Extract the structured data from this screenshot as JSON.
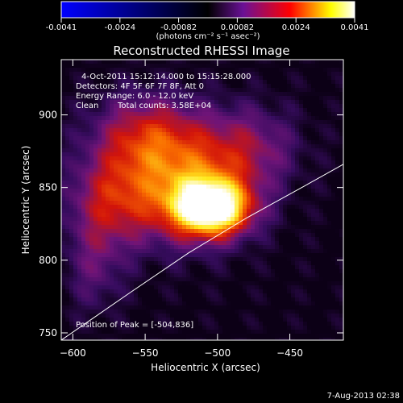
{
  "colorbar": {
    "ticks": [
      "-0.0041",
      "-0.0024",
      "-0.00082",
      "0.00082",
      "0.0024",
      "0.0041"
    ],
    "unit_label": "(photons cm⁻² s⁻¹ asec⁻²)",
    "range": [
      -0.0041,
      0.0041
    ],
    "colors": [
      "#0000ff",
      "#000000",
      "#6a1196",
      "#ff0000",
      "#ffff00",
      "#ffffff"
    ]
  },
  "chart_data": {
    "type": "heatmap",
    "title": "Reconstructed RHESSI Image",
    "xlabel": "Heliocentric X (arcsec)",
    "ylabel": "Heliocentric Y (arcsec)",
    "xlim": [
      -608,
      -413
    ],
    "ylim": [
      745,
      938
    ],
    "x_ticks": [
      -600,
      -550,
      -500,
      -450
    ],
    "y_ticks": [
      750,
      800,
      850,
      900
    ],
    "annotations": {
      "time_range": "4-Oct-2011 15:12:14.000 to 15:15:28.000",
      "detectors": "Detectors: 4F 5F 6F 7F 8F, Att 0",
      "energy": "Energy Range: 6.0 - 12.0 keV",
      "clean": "Clean",
      "counts": "Total counts: 3.58E+04",
      "peak": "Position of Peak = [-504,836]"
    },
    "peak": {
      "x": -504,
      "y": 836
    },
    "limb_curve": {
      "x": [
        -608,
        -560,
        -520,
        -480,
        -440,
        -413
      ],
      "y": [
        745,
        778,
        805,
        829,
        851,
        866
      ]
    },
    "sources": [
      {
        "x": -504,
        "y": 836,
        "sx": 18,
        "sy": 13,
        "amp": 1.0
      },
      {
        "x": -525,
        "y": 850,
        "sx": 30,
        "sy": 25,
        "amp": 0.5
      },
      {
        "x": -548,
        "y": 885,
        "sx": 26,
        "sy": 20,
        "amp": 0.4
      },
      {
        "x": -575,
        "y": 840,
        "sx": 20,
        "sy": 22,
        "amp": 0.33
      },
      {
        "x": -480,
        "y": 877,
        "sx": 24,
        "sy": 20,
        "amp": 0.28
      },
      {
        "x": -585,
        "y": 795,
        "sx": 14,
        "sy": 22,
        "amp": 0.18
      }
    ]
  },
  "footer": {
    "date": "7-Aug-2013 02:38"
  }
}
